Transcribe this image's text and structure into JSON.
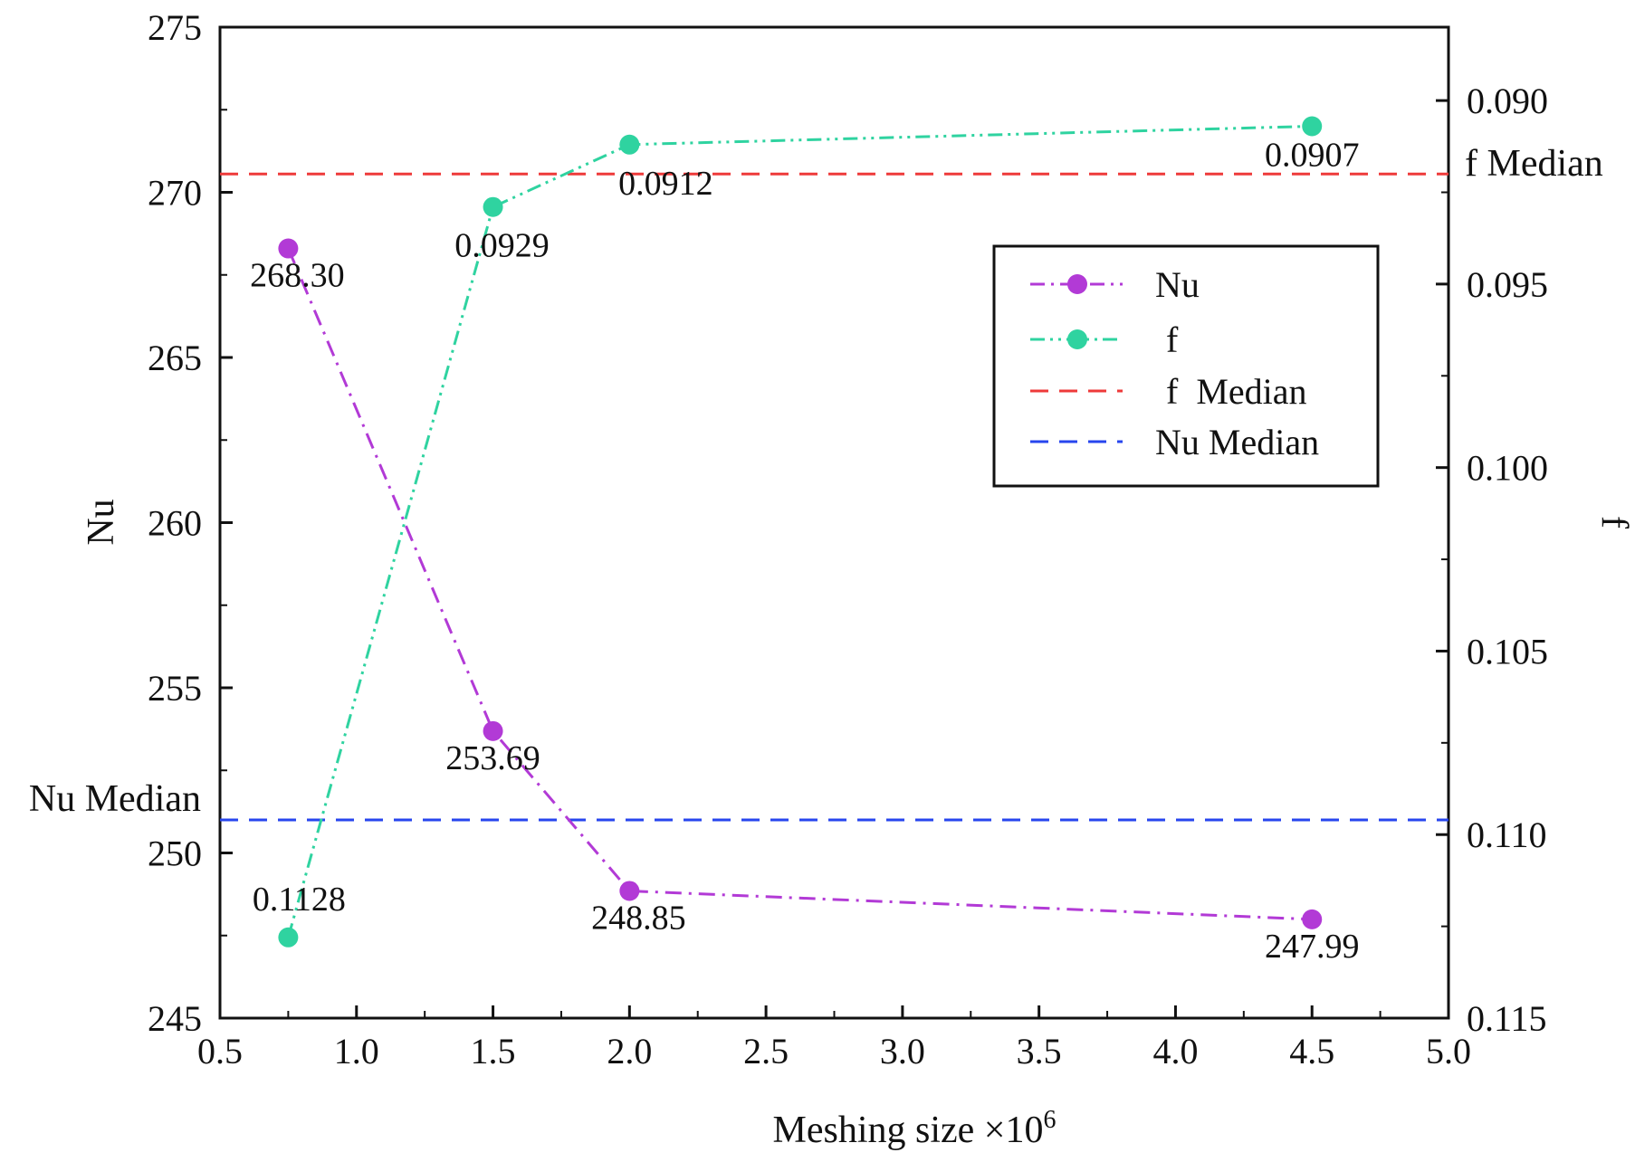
{
  "chart_data": {
    "type": "line",
    "title": "",
    "xlabel": "Meshing size ×10",
    "xlabel_sup": "6",
    "ylabel_left": "Nu",
    "ylabel_right": "f",
    "xlim": [
      0.5,
      5.0
    ],
    "xticks": [
      0.5,
      1.0,
      1.5,
      2.0,
      2.5,
      3.0,
      3.5,
      4.0,
      4.5,
      5.0
    ],
    "xtick_labels": [
      "0.5",
      "1.0",
      "1.5",
      "2.0",
      "2.5",
      "3.0",
      "3.5",
      "4.0",
      "4.5",
      "5.0"
    ],
    "ylim_left": [
      245,
      275
    ],
    "yticks_left": [
      245,
      250,
      255,
      260,
      265,
      270,
      275
    ],
    "ytick_labels_left": [
      "245",
      "250",
      "255",
      "260",
      "265",
      "270",
      "275"
    ],
    "ylim_right": [
      0.115,
      0.088
    ],
    "yticks_right": [
      0.09,
      0.095,
      0.1,
      0.105,
      0.11,
      0.115
    ],
    "ytick_labels_right": [
      "0.090",
      "0.095",
      "0.100",
      "0.105",
      "0.110",
      "0.115"
    ],
    "grid": false,
    "legend_position": "upper-right",
    "series": [
      {
        "name": "Nu",
        "axis": "left",
        "color": "#b23ad6",
        "line_style": "dash-dot",
        "x": [
          0.75,
          1.5,
          2.0,
          4.5
        ],
        "values": [
          268.3,
          253.69,
          248.85,
          247.99
        ],
        "labels": [
          "268.30",
          "253.69",
          "248.85",
          "247.99"
        ]
      },
      {
        "name": "f",
        "axis": "right",
        "color": "#2fd3a0",
        "line_style": "dash-dot-dot",
        "x": [
          0.75,
          1.5,
          2.0,
          4.5
        ],
        "values": [
          0.1128,
          0.0929,
          0.0912,
          0.0907
        ],
        "labels": [
          "0.1128",
          "0.0929",
          "0.0912",
          "0.0907"
        ]
      }
    ],
    "reference_lines": [
      {
        "name": "f Median",
        "axis": "right",
        "value": 0.092,
        "color": "#ee3a3a",
        "label": "f  Median",
        "legend_label": "f  Median",
        "label_side": "right"
      },
      {
        "name": "Nu Median",
        "axis": "left",
        "value": 251.0,
        "color": "#2745ee",
        "label": "Nu Median",
        "legend_label": "Nu Median",
        "label_side": "left"
      }
    ]
  }
}
